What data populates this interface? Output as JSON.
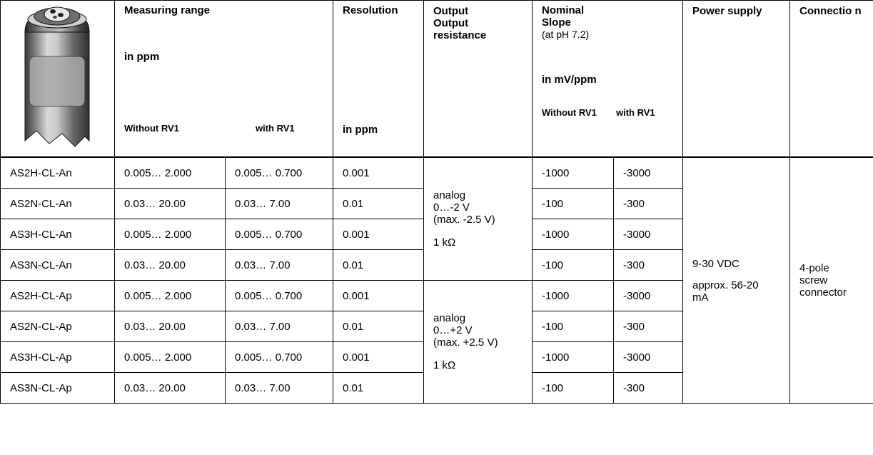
{
  "header": {
    "range_title": "Measuring range",
    "range_unit": "in ppm",
    "range_without": "Without RV1",
    "range_with": "with RV1",
    "resolution_title": "Resolution",
    "resolution_unit": "in ppm",
    "output_line1": "Output",
    "output_line2": "Output resistance",
    "slope_title1": "Nominal",
    "slope_title2": "Slope",
    "slope_note": "(at pH 7.2)",
    "slope_unit": "in mV/ppm",
    "slope_without": "Without RV1",
    "slope_with": "with RV1",
    "power_title": "Power supply",
    "connection_title": "Connectio n"
  },
  "rows": [
    {
      "model": "AS2H-CL-An",
      "range_without": "0.005… 2.000",
      "range_with": "0.005… 0.700",
      "resolution": "0.001",
      "slope_without": "-1000",
      "slope_with": "-3000"
    },
    {
      "model": "AS2N-CL-An",
      "range_without": "0.03… 20.00",
      "range_with": "0.03… 7.00",
      "resolution": "0.01",
      "slope_without": "-100",
      "slope_with": "-300"
    },
    {
      "model": "AS3H-CL-An",
      "range_without": "0.005… 2.000",
      "range_with": "0.005… 0.700",
      "resolution": "0.001",
      "slope_without": "-1000",
      "slope_with": "-3000"
    },
    {
      "model": "AS3N-CL-An",
      "range_without": "0.03… 20.00",
      "range_with": "0.03… 7.00",
      "resolution": "0.01",
      "slope_without": "-100",
      "slope_with": "-300"
    },
    {
      "model": "AS2H-CL-Ap",
      "range_without": "0.005… 2.000",
      "range_with": "0.005… 0.700",
      "resolution": "0.001",
      "slope_without": "-1000",
      "slope_with": "-3000"
    },
    {
      "model": "AS2N-CL-Ap",
      "range_without": "0.03… 20.00",
      "range_with": "0.03… 7.00",
      "resolution": "0.01",
      "slope_without": "-100",
      "slope_with": "-300"
    },
    {
      "model": "AS3H-CL-Ap",
      "range_without": "0.005… 2.000",
      "range_with": "0.005… 0.700",
      "resolution": "0.001",
      "slope_without": "-1000",
      "slope_with": "-3000"
    },
    {
      "model": "AS3N-CL-Ap",
      "range_without": "0.03… 20.00",
      "range_with": "0.03… 7.00",
      "resolution": "0.01",
      "slope_without": "-100",
      "slope_with": "-300"
    }
  ],
  "output_groups": [
    {
      "type": "analog",
      "range": "0…-2 V",
      "max": "(max. -2.5 V)",
      "resistance": "1 kΩ"
    },
    {
      "type": "analog",
      "range": "0…+2 V",
      "max": "(max. +2.5 V)",
      "resistance": "1 kΩ"
    }
  ],
  "power": {
    "voltage": "9-30 VDC",
    "current": "approx. 56-20 mA"
  },
  "connection": {
    "text": "4-pole screw connector"
  }
}
